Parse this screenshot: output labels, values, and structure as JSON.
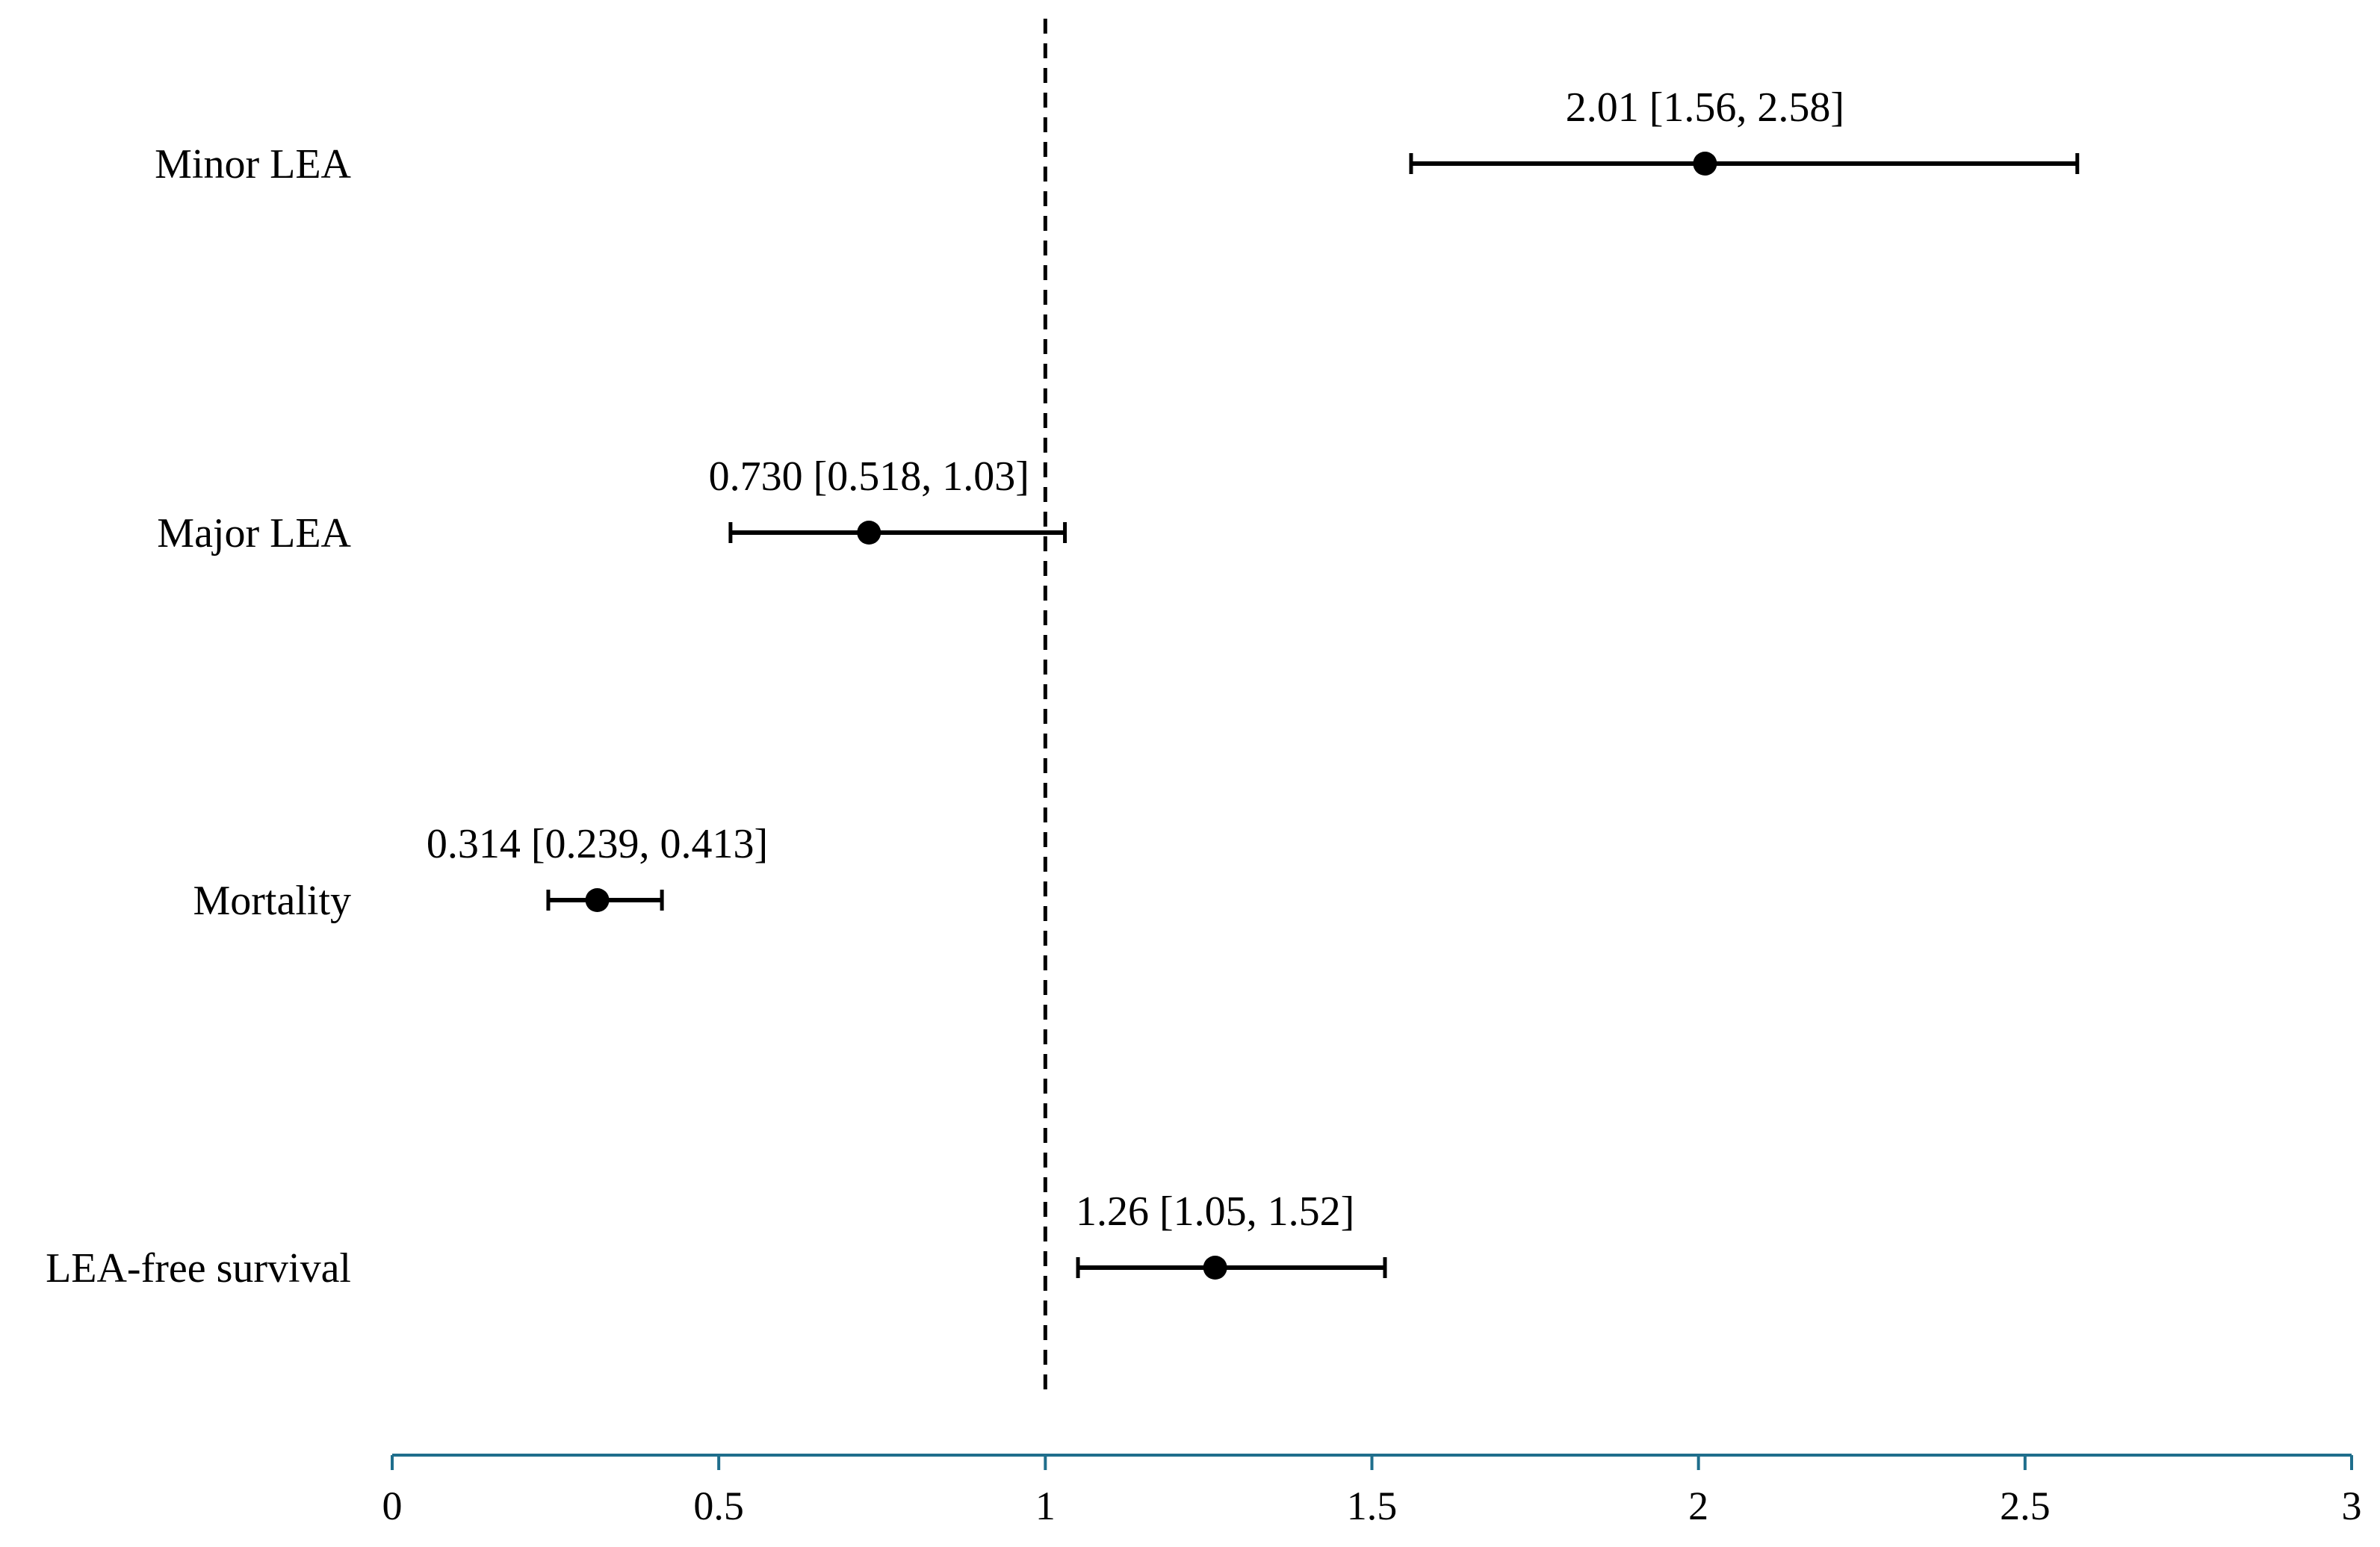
{
  "chart_data": {
    "type": "forest",
    "title": "",
    "xlabel": "",
    "ylabel": "",
    "xlim": [
      0,
      3
    ],
    "x_ticks": [
      0,
      0.5,
      1,
      1.5,
      2,
      2.5,
      3
    ],
    "x_tick_labels": [
      "0",
      "0.5",
      "1",
      "1.5",
      "2",
      "2.5",
      "3"
    ],
    "reference_line": 1,
    "grid": false,
    "axis_color": "#1f6e8c",
    "mark_color": "#000000",
    "rows": [
      {
        "label": "Minor LEA",
        "estimate": 2.01,
        "lower": 1.56,
        "upper": 2.58,
        "text": "2.01 [1.56, 2.58]"
      },
      {
        "label": "Major LEA",
        "estimate": 0.73,
        "lower": 0.518,
        "upper": 1.03,
        "text": "0.730 [0.518, 1.03]"
      },
      {
        "label": "Mortality",
        "estimate": 0.314,
        "lower": 0.239,
        "upper": 0.413,
        "text": "0.314 [0.239, 0.413]"
      },
      {
        "label": "LEA-free survival",
        "estimate": 1.26,
        "lower": 1.05,
        "upper": 1.52,
        "text": "1.26 [1.05, 1.52]"
      }
    ]
  }
}
